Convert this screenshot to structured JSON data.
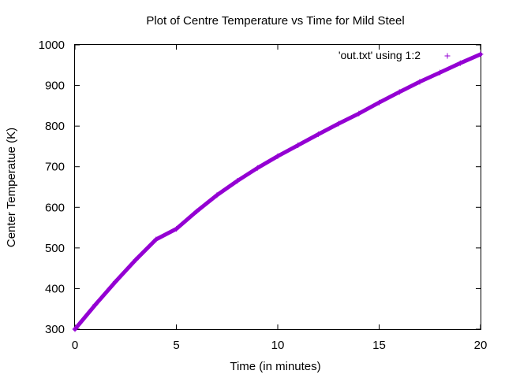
{
  "chart_data": {
    "type": "scatter",
    "title": "Plot of Centre Temperature vs Time for Mild Steel",
    "xlabel": "Time (in minutes)",
    "ylabel": "Center Temperatue (K)",
    "xlim": [
      0,
      20
    ],
    "ylim": [
      300,
      1000
    ],
    "xticks": [
      "0",
      "5",
      "10",
      "15",
      "20"
    ],
    "yticks": [
      "300",
      "400",
      "500",
      "600",
      "700",
      "800",
      "900",
      "1000"
    ],
    "grid": false,
    "legend_position": "top-right",
    "series": [
      {
        "name": "'out.txt' using 1:2",
        "color": "#9400d3",
        "marker": "plus",
        "x": [
          0,
          1,
          2,
          3,
          4,
          5,
          6,
          7,
          8,
          9,
          10,
          11,
          12,
          13,
          14,
          15,
          16,
          17,
          18,
          19,
          20
        ],
        "y": [
          300,
          360,
          417,
          471,
          521,
          547,
          590,
          630,
          665,
          697,
          726,
          753,
          780,
          806,
          831,
          858,
          884,
          909,
          932,
          955,
          977
        ]
      }
    ]
  }
}
